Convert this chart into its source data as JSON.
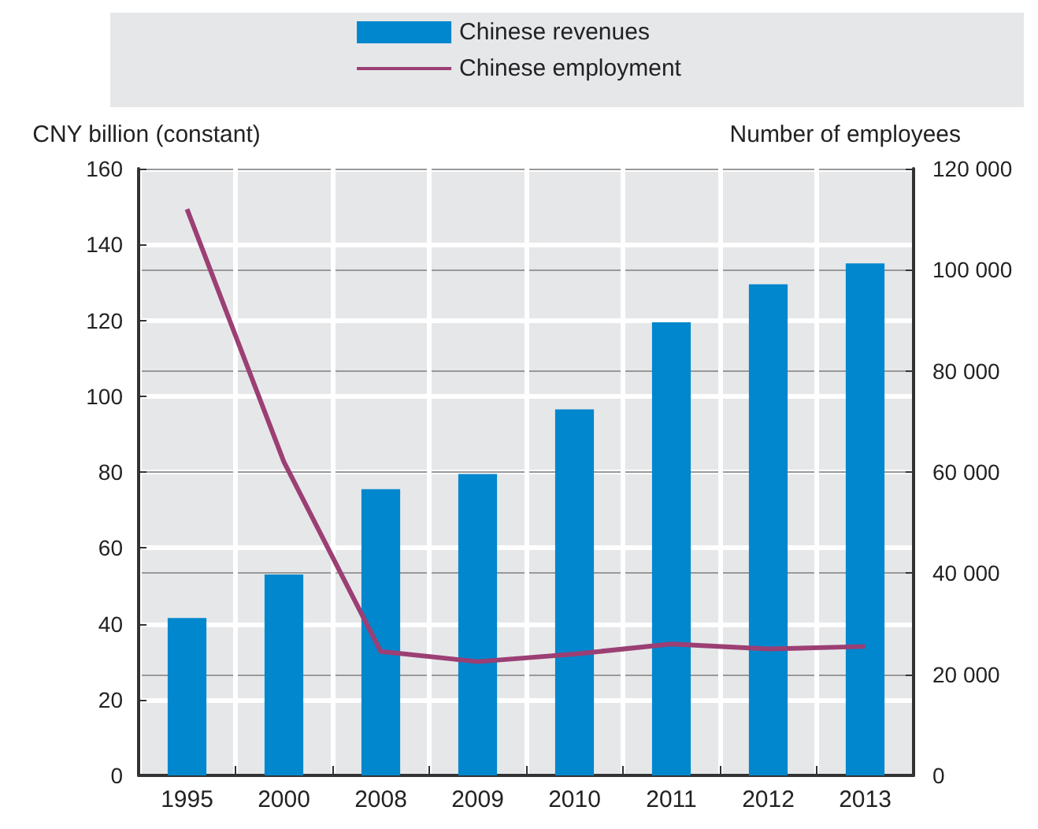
{
  "chart_data": {
    "type": "bar",
    "categories": [
      "1995",
      "2000",
      "2008",
      "2009",
      "2010",
      "2011",
      "2012",
      "2013"
    ],
    "series": [
      {
        "name": "Chinese revenues",
        "color": "#0087cd",
        "values": [
          41.5,
          53,
          75.5,
          79.5,
          96.5,
          119.5,
          129.5,
          135
        ]
      },
      {
        "name": "Chinese employment",
        "type": "line",
        "axis": "y2",
        "color": "#9b3f74",
        "values": [
          112000,
          62000,
          24500,
          22500,
          24000,
          26000,
          25000,
          25500
        ]
      }
    ],
    "ylabel": "CNY billion (constant)",
    "y2label": "Number of employees",
    "ylim": [
      0,
      160
    ],
    "yticks": [
      0,
      20,
      40,
      60,
      80,
      100,
      120,
      140,
      160
    ],
    "y2lim": [
      0,
      120000
    ],
    "y2ticks": [
      0,
      {
        "value": 20000,
        "label": "20 000"
      },
      {
        "value": 40000,
        "label": "40 000"
      },
      {
        "value": 60000,
        "label": "60 000"
      },
      {
        "value": 80000,
        "label": "80 000"
      },
      {
        "value": 100000,
        "label": "100 000"
      },
      {
        "value": 120000,
        "label": "120 000"
      }
    ],
    "grid": true,
    "legend": "top",
    "marker": "none",
    "line_style": "solid"
  }
}
